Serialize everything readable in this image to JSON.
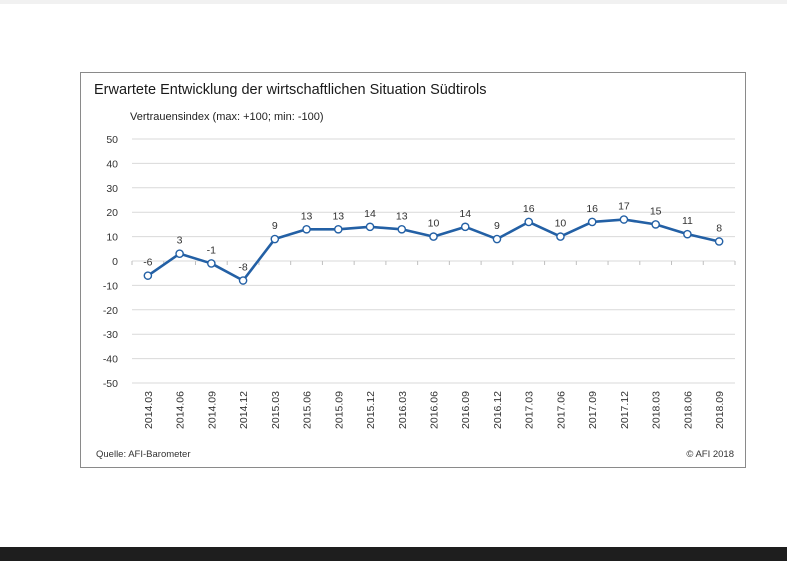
{
  "chart_data": {
    "type": "line",
    "title": "Erwartete Entwicklung der wirtschaftlichen Situation Südtirols",
    "subtitle": "Vertrauensindex (max: +100; min: -100)",
    "xlabel": "",
    "ylabel": "",
    "categories": [
      "2014.03",
      "2014.06",
      "2014.09",
      "2014.12",
      "2015.03",
      "2015.06",
      "2015.09",
      "2015.12",
      "2016.03",
      "2016.06",
      "2016.09",
      "2016.12",
      "2017.03",
      "2017.06",
      "2017.09",
      "2017.12",
      "2018.03",
      "2018.06",
      "2018.09"
    ],
    "series": [
      {
        "values": [
          -6,
          3,
          -1,
          -8,
          9,
          13,
          13,
          14,
          13,
          10,
          14,
          9,
          16,
          10,
          16,
          17,
          15,
          11,
          8
        ],
        "color": "#2360a5"
      }
    ],
    "ylim": [
      -50,
      50
    ],
    "yticks": [
      50,
      40,
      30,
      20,
      10,
      0,
      -10,
      -20,
      -30,
      -40,
      -50
    ],
    "grid": true,
    "legend": "none",
    "data_labels": true,
    "source": "Quelle: AFI-Barometer",
    "copyright": "© AFI 2018"
  }
}
